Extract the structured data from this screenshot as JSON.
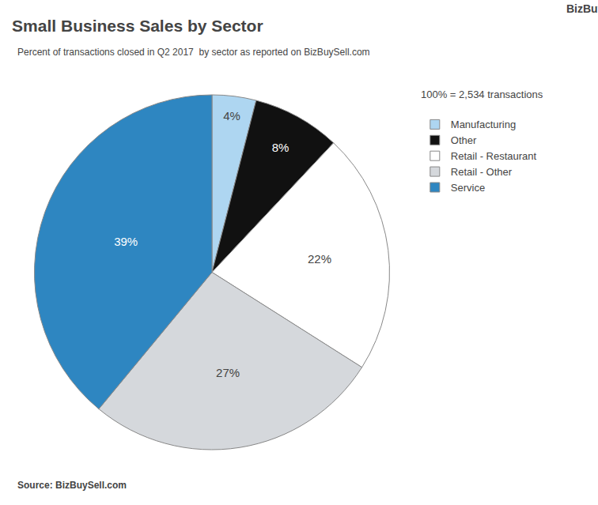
{
  "chart_data": {
    "type": "pie",
    "title": "Small Business Sales by Sector",
    "subtitle": "Percent of transactions closed in Q2 2017  by sector as reported on BizBuySell.com",
    "source": "Source: BizBuySell.com",
    "annotations": [
      "100% = 2,534 transactions",
      "BizBuySell®"
    ],
    "categories": [
      "Manufacturing",
      "Other",
      "Retail - Restaurant",
      "Retail - Other",
      "Service"
    ],
    "values": [
      4,
      8,
      22,
      27,
      39
    ],
    "value_labels": [
      "4%",
      "8%",
      "22%",
      "27%",
      "39%"
    ],
    "colors": [
      "#aed6f1",
      "#111111",
      "#ffffff",
      "#d5d8dc",
      "#2e86c1"
    ],
    "data_labels": true,
    "legend": "right"
  }
}
